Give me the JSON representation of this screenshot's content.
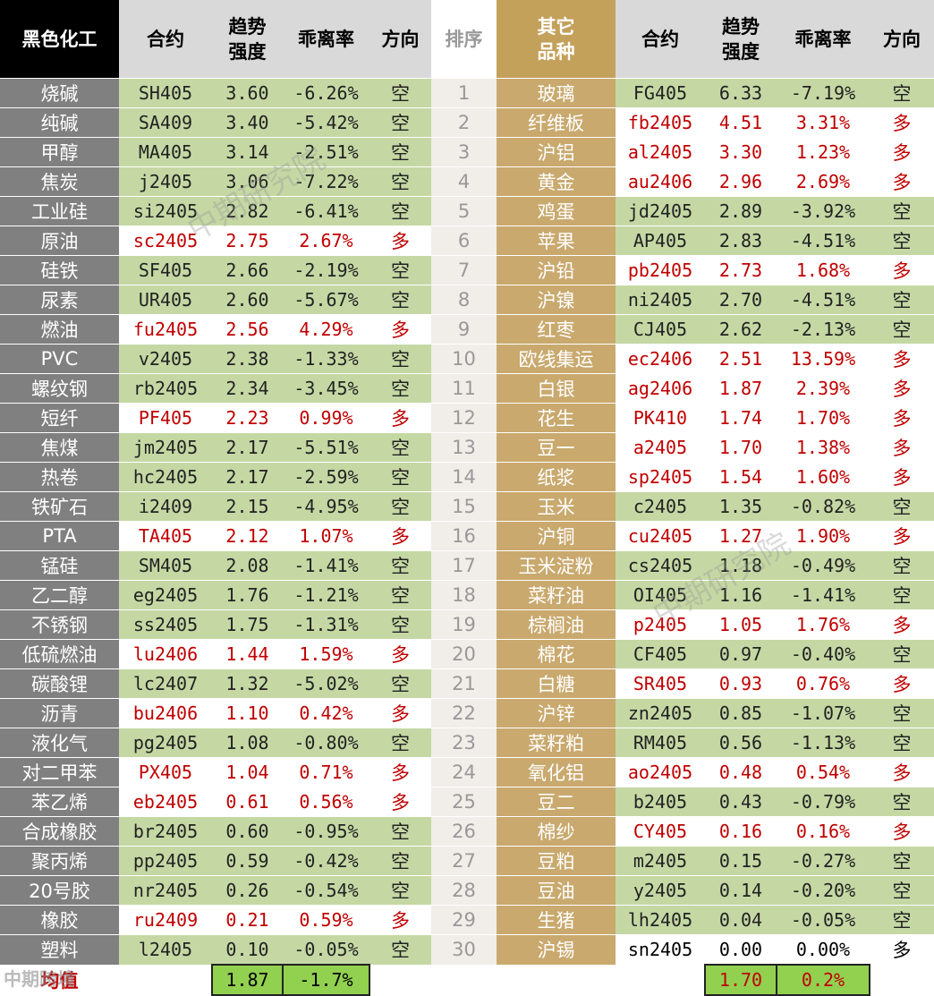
{
  "headers": [
    "黑色化工",
    "合约",
    "趋势\n强度",
    "乖离率",
    "方向",
    "排序",
    "其它\n品种",
    "合约",
    "趋势\n强度",
    "乖离率",
    "方向"
  ],
  "left": [
    [
      "烧碱",
      "SH405",
      "3.60",
      "-6.26%",
      "空"
    ],
    [
      "纯碱",
      "SA409",
      "3.40",
      "-5.42%",
      "空"
    ],
    [
      "甲醇",
      "MA405",
      "3.14",
      "-2.51%",
      "空"
    ],
    [
      "焦炭",
      "j2405",
      "3.06",
      "-7.22%",
      "空"
    ],
    [
      "工业硅",
      "si2405",
      "2.82",
      "-6.41%",
      "空"
    ],
    [
      "原油",
      "sc2405",
      "2.75",
      "2.67%",
      "多"
    ],
    [
      "硅铁",
      "SF405",
      "2.66",
      "-2.19%",
      "空"
    ],
    [
      "尿素",
      "UR405",
      "2.60",
      "-5.67%",
      "空"
    ],
    [
      "燃油",
      "fu2405",
      "2.56",
      "4.29%",
      "多"
    ],
    [
      "PVC",
      "v2405",
      "2.38",
      "-1.33%",
      "空"
    ],
    [
      "螺纹钢",
      "rb2405",
      "2.34",
      "-3.45%",
      "空"
    ],
    [
      "短纤",
      "PF405",
      "2.23",
      "0.99%",
      "多"
    ],
    [
      "焦煤",
      "jm2405",
      "2.17",
      "-5.51%",
      "空"
    ],
    [
      "热卷",
      "hc2405",
      "2.17",
      "-2.59%",
      "空"
    ],
    [
      "铁矿石",
      "i2409",
      "2.15",
      "-4.95%",
      "空"
    ],
    [
      "PTA",
      "TA405",
      "2.12",
      "1.07%",
      "多"
    ],
    [
      "锰硅",
      "SM405",
      "2.08",
      "-1.41%",
      "空"
    ],
    [
      "乙二醇",
      "eg2405",
      "1.76",
      "-1.21%",
      "空"
    ],
    [
      "不锈钢",
      "ss2405",
      "1.75",
      "-1.31%",
      "空"
    ],
    [
      "低硫燃油",
      "lu2406",
      "1.44",
      "1.59%",
      "多"
    ],
    [
      "碳酸锂",
      "lc2407",
      "1.32",
      "-5.02%",
      "空"
    ],
    [
      "沥青",
      "bu2406",
      "1.10",
      "0.42%",
      "多"
    ],
    [
      "液化气",
      "pg2405",
      "1.08",
      "-0.80%",
      "空"
    ],
    [
      "对二甲苯",
      "PX405",
      "1.04",
      "0.71%",
      "多"
    ],
    [
      "苯乙烯",
      "eb2405",
      "0.61",
      "0.56%",
      "多"
    ],
    [
      "合成橡胶",
      "br2405",
      "0.60",
      "-0.95%",
      "空"
    ],
    [
      "聚丙烯",
      "pp2405",
      "0.59",
      "-0.42%",
      "空"
    ],
    [
      "20号胶",
      "nr2405",
      "0.26",
      "-0.54%",
      "空"
    ],
    [
      "橡胶",
      "ru2409",
      "0.21",
      "0.59%",
      "多"
    ],
    [
      "塑料",
      "l2405",
      "0.10",
      "-0.05%",
      "空"
    ]
  ],
  "ranks": [
    "1",
    "2",
    "3",
    "4",
    "5",
    "6",
    "7",
    "8",
    "9",
    "10",
    "11",
    "12",
    "13",
    "14",
    "15",
    "16",
    "17",
    "18",
    "19",
    "20",
    "21",
    "22",
    "23",
    "24",
    "25",
    "26",
    "27",
    "28",
    "29",
    "30"
  ],
  "right": [
    [
      "玻璃",
      "FG405",
      "6.33",
      "-7.19%",
      "空"
    ],
    [
      "纤维板",
      "fb2405",
      "4.51",
      "3.31%",
      "多"
    ],
    [
      "沪铝",
      "al2405",
      "3.30",
      "1.23%",
      "多"
    ],
    [
      "黄金",
      "au2406",
      "2.96",
      "2.69%",
      "多"
    ],
    [
      "鸡蛋",
      "jd2405",
      "2.89",
      "-3.92%",
      "空"
    ],
    [
      "苹果",
      "AP405",
      "2.83",
      "-4.51%",
      "空"
    ],
    [
      "沪铅",
      "pb2405",
      "2.73",
      "1.68%",
      "多"
    ],
    [
      "沪镍",
      "ni2405",
      "2.70",
      "-4.51%",
      "空"
    ],
    [
      "红枣",
      "CJ405",
      "2.62",
      "-2.13%",
      "空"
    ],
    [
      "欧线集运",
      "ec2406",
      "2.51",
      "13.59%",
      "多"
    ],
    [
      "白银",
      "ag2406",
      "1.87",
      "2.39%",
      "多"
    ],
    [
      "花生",
      "PK410",
      "1.74",
      "1.70%",
      "多"
    ],
    [
      "豆一",
      "a2405",
      "1.70",
      "1.38%",
      "多"
    ],
    [
      "纸浆",
      "sp2405",
      "1.54",
      "1.60%",
      "多"
    ],
    [
      "玉米",
      "c2405",
      "1.35",
      "-0.82%",
      "空"
    ],
    [
      "沪铜",
      "cu2405",
      "1.27",
      "1.90%",
      "多"
    ],
    [
      "玉米淀粉",
      "cs2405",
      "1.18",
      "-0.49%",
      "空"
    ],
    [
      "菜籽油",
      "OI405",
      "1.16",
      "-1.41%",
      "空"
    ],
    [
      "棕榈油",
      "p2405",
      "1.05",
      "1.76%",
      "多"
    ],
    [
      "棉花",
      "CF405",
      "0.97",
      "-0.40%",
      "空"
    ],
    [
      "白糖",
      "SR405",
      "0.93",
      "0.76%",
      "多"
    ],
    [
      "沪锌",
      "zn2405",
      "0.85",
      "-1.07%",
      "空"
    ],
    [
      "菜籽粕",
      "RM405",
      "0.56",
      "-1.13%",
      "空"
    ],
    [
      "氧化铝",
      "ao2405",
      "0.48",
      "0.54%",
      "多"
    ],
    [
      "豆二",
      "b2405",
      "0.43",
      "-0.79%",
      "空"
    ],
    [
      "棉纱",
      "CY405",
      "0.16",
      "0.16%",
      "多"
    ],
    [
      "豆粕",
      "m2405",
      "0.15",
      "-0.27%",
      "空"
    ],
    [
      "豆油",
      "y2405",
      "0.14",
      "-0.20%",
      "空"
    ],
    [
      "生猪",
      "lh2405",
      "0.04",
      "-0.05%",
      "空"
    ],
    [
      "沪锡",
      "sn2405",
      "0.00",
      "0.00%",
      "多"
    ]
  ],
  "footer": {
    "label": "均值",
    "left_strength": "1.87",
    "left_deviation": "-1.7%",
    "right_strength": "1.70",
    "right_deviation": "0.2%"
  },
  "watermarks": [
    "中期研究院",
    "中期研究院"
  ],
  "logo": "中期跨境"
}
